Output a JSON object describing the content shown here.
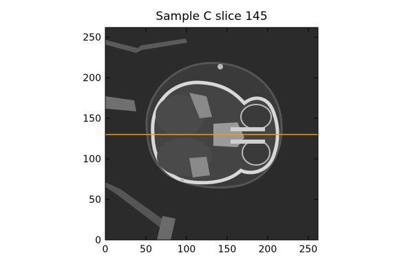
{
  "title": "Sample C slice 145",
  "image": {
    "description_icon": "ct-scan-axial-head-slice",
    "crosshair_color": "#ff9900",
    "crosshair_y": 130
  },
  "axes": {
    "x_range": [
      0,
      262
    ],
    "y_range": [
      0,
      262
    ],
    "x_ticks": [
      0,
      50,
      100,
      150,
      200,
      250
    ],
    "y_ticks": [
      0,
      50,
      100,
      150,
      200,
      250
    ]
  }
}
